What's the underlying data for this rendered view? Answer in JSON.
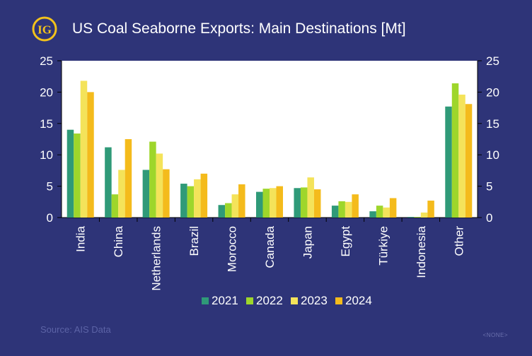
{
  "header": {
    "logo_text": "IG",
    "title": "US Coal Seaborne Exports: Main Destinations [Mt]"
  },
  "footer": {
    "source": "Source: AIS Data",
    "tag": "<NONE>"
  },
  "colors": {
    "background": "#2e3478",
    "plot_background": "#ffffff",
    "logo_ring": "#f3c21b"
  },
  "chart_data": {
    "type": "bar",
    "title": "US Coal Seaborne Exports: Main Destinations [Mt]",
    "xlabel": "",
    "ylabel": "",
    "ylim": [
      0,
      25
    ],
    "yticks": [
      0,
      5,
      10,
      15,
      20,
      25
    ],
    "secondary_axis": true,
    "grid": false,
    "legend_position": "bottom-center",
    "categories": [
      "India",
      "China",
      "Netherlands",
      "Brazil",
      "Morocco",
      "Canada",
      "Japan",
      "Egypt",
      "Türkiye",
      "Indonesia",
      "Other"
    ],
    "series": [
      {
        "name": "2021",
        "color": "#2f9a78",
        "values": [
          14.0,
          11.2,
          7.6,
          5.4,
          2.0,
          4.1,
          4.7,
          1.9,
          1.0,
          0.1,
          17.7
        ]
      },
      {
        "name": "2022",
        "color": "#9ed62b",
        "values": [
          13.4,
          3.7,
          12.1,
          5.0,
          2.3,
          4.6,
          4.8,
          2.6,
          1.9,
          0.1,
          21.4
        ]
      },
      {
        "name": "2023",
        "color": "#f4e35a",
        "values": [
          21.8,
          7.6,
          10.2,
          6.1,
          3.7,
          4.7,
          6.4,
          2.5,
          1.6,
          0.8,
          19.6
        ]
      },
      {
        "name": "2024",
        "color": "#f4bb1c",
        "values": [
          20.0,
          12.5,
          7.7,
          7.0,
          5.3,
          5.0,
          4.5,
          3.7,
          3.1,
          2.7,
          18.1
        ]
      }
    ]
  }
}
